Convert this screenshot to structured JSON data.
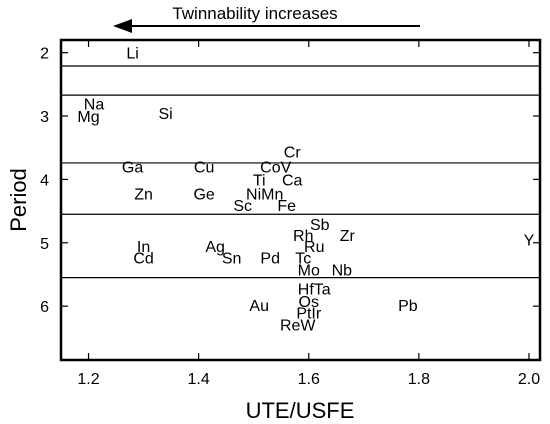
{
  "chart_data": {
    "type": "scatter",
    "title": "",
    "annotation": "Twinnability increases",
    "xlabel": "UTE/USFE",
    "ylabel": "Period",
    "xlim": [
      1.15,
      2.02
    ],
    "ylim": [
      1.8,
      6.85
    ],
    "xticks": [
      {
        "value": 1.2,
        "label": "1.2"
      },
      {
        "value": 1.4,
        "label": "1.4"
      },
      {
        "value": 1.6,
        "label": "1.6"
      },
      {
        "value": 1.8,
        "label": "1.8"
      },
      {
        "value": 2.0,
        "label": "2.0"
      }
    ],
    "yticks": [
      {
        "value": 2,
        "label": "2"
      },
      {
        "value": 3,
        "label": "3"
      },
      {
        "value": 4,
        "label": "4"
      },
      {
        "value": 5,
        "label": "5"
      },
      {
        "value": 6,
        "label": "6"
      }
    ],
    "period_boundaries": [
      2.21,
      2.67,
      3.74,
      4.55,
      5.55
    ],
    "points": [
      {
        "label": "Li",
        "x": 1.28,
        "y": 2.0
      },
      {
        "label": "Na",
        "x": 1.21,
        "y": 2.8
      },
      {
        "label": "Mg",
        "x": 1.2,
        "y": 3.0
      },
      {
        "label": "Si",
        "x": 1.34,
        "y": 2.95
      },
      {
        "label": "Cr",
        "x": 1.57,
        "y": 3.56
      },
      {
        "label": "Ga",
        "x": 1.28,
        "y": 3.8
      },
      {
        "label": "Cu",
        "x": 1.41,
        "y": 3.8
      },
      {
        "label": "CoV",
        "x": 1.54,
        "y": 3.8
      },
      {
        "label": "Ti",
        "x": 1.51,
        "y": 4.0
      },
      {
        "label": "Ca",
        "x": 1.57,
        "y": 4.0
      },
      {
        "label": "Zn",
        "x": 1.3,
        "y": 4.22
      },
      {
        "label": "Ge",
        "x": 1.41,
        "y": 4.22
      },
      {
        "label": "NiMn",
        "x": 1.52,
        "y": 4.22
      },
      {
        "label": "Sc",
        "x": 1.48,
        "y": 4.4
      },
      {
        "label": "Fe",
        "x": 1.56,
        "y": 4.4
      },
      {
        "label": "Sb",
        "x": 1.62,
        "y": 4.7
      },
      {
        "label": "Rh",
        "x": 1.59,
        "y": 4.88
      },
      {
        "label": "Zr",
        "x": 1.67,
        "y": 4.88
      },
      {
        "label": "Y",
        "x": 2.0,
        "y": 4.95
      },
      {
        "label": "In",
        "x": 1.3,
        "y": 5.05
      },
      {
        "label": "Ag",
        "x": 1.43,
        "y": 5.05
      },
      {
        "label": "Ru",
        "x": 1.61,
        "y": 5.05
      },
      {
        "label": "Cd",
        "x": 1.3,
        "y": 5.23
      },
      {
        "label": "Sn",
        "x": 1.46,
        "y": 5.23
      },
      {
        "label": "Pd",
        "x": 1.53,
        "y": 5.23
      },
      {
        "label": "Tc",
        "x": 1.59,
        "y": 5.23
      },
      {
        "label": "Mo",
        "x": 1.6,
        "y": 5.42
      },
      {
        "label": "Nb",
        "x": 1.66,
        "y": 5.42
      },
      {
        "label": "HfTa",
        "x": 1.61,
        "y": 5.72
      },
      {
        "label": "Os",
        "x": 1.6,
        "y": 5.92
      },
      {
        "label": "Au",
        "x": 1.51,
        "y": 5.98
      },
      {
        "label": "Pb",
        "x": 1.78,
        "y": 5.98
      },
      {
        "label": "PtIr",
        "x": 1.6,
        "y": 6.1
      },
      {
        "label": "ReW",
        "x": 1.58,
        "y": 6.29
      }
    ]
  }
}
